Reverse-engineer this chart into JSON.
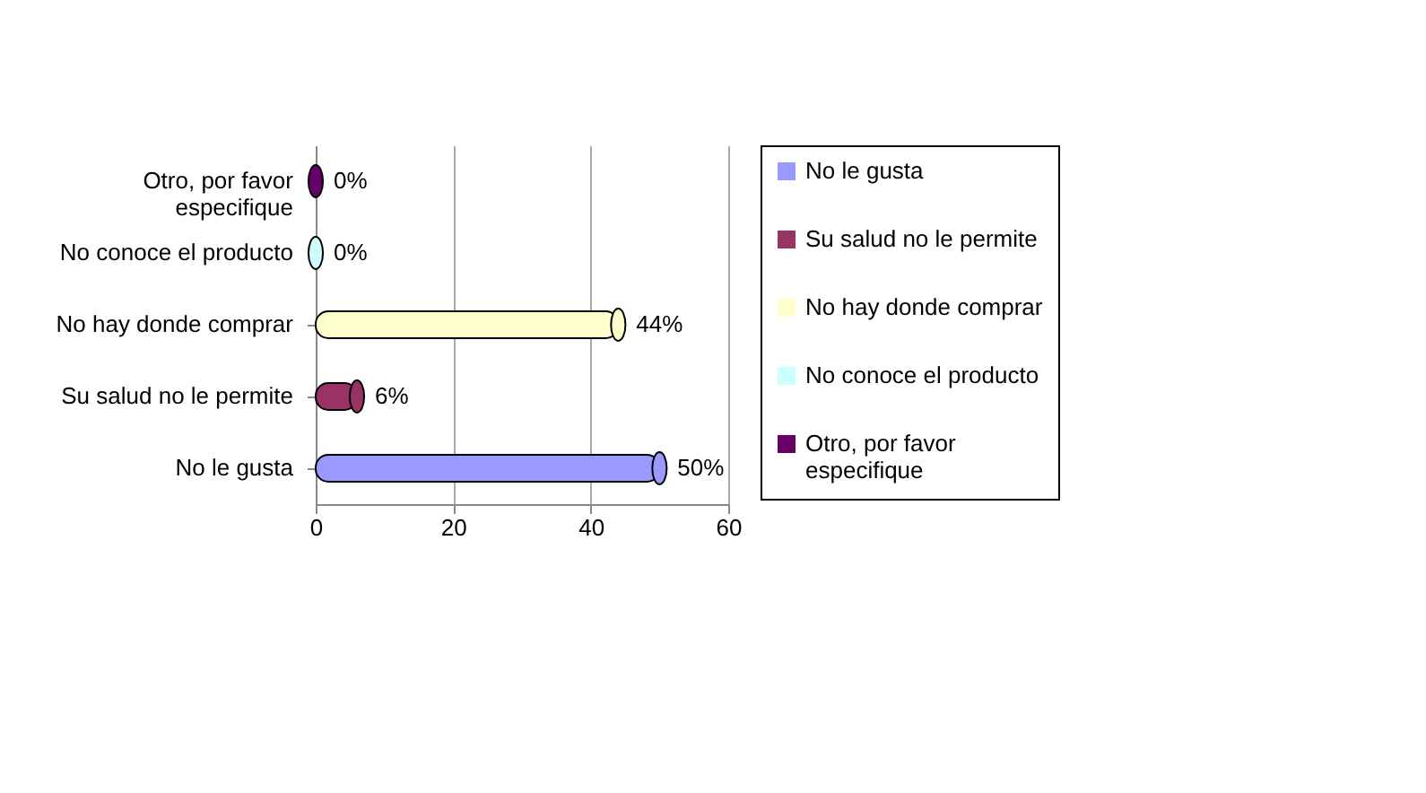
{
  "chart_data": {
    "type": "bar",
    "orientation": "horizontal",
    "categories": [
      "Otro, por favor especifique",
      "No conoce el producto",
      "No hay donde comprar",
      "Su salud no le permite",
      "No le gusta"
    ],
    "series": [
      {
        "name": "No le gusta",
        "color": "#9999ff",
        "values": [
          null,
          null,
          null,
          null,
          50
        ],
        "value_labels": [
          null,
          null,
          null,
          null,
          "50%"
        ]
      },
      {
        "name": "Su salud no le permite",
        "color": "#993366",
        "values": [
          null,
          null,
          null,
          6,
          null
        ],
        "value_labels": [
          null,
          null,
          null,
          "6%",
          null
        ]
      },
      {
        "name": "No hay donde comprar",
        "color": "#ffffcc",
        "values": [
          null,
          null,
          44,
          null,
          null
        ],
        "value_labels": [
          null,
          null,
          "44%",
          null,
          null
        ]
      },
      {
        "name": "No conoce el producto",
        "color": "#ccffff",
        "values": [
          null,
          0,
          null,
          null,
          null
        ],
        "value_labels": [
          null,
          "0%",
          null,
          null,
          null
        ]
      },
      {
        "name": "Otro, por favor especifique",
        "color": "#660066",
        "values": [
          0,
          null,
          null,
          null,
          null
        ],
        "value_labels": [
          "0%",
          null,
          null,
          null,
          null
        ]
      }
    ],
    "xlim": [
      0,
      60
    ],
    "xticks": [
      0,
      20,
      40,
      60
    ],
    "grid": "x",
    "legend": "right"
  }
}
